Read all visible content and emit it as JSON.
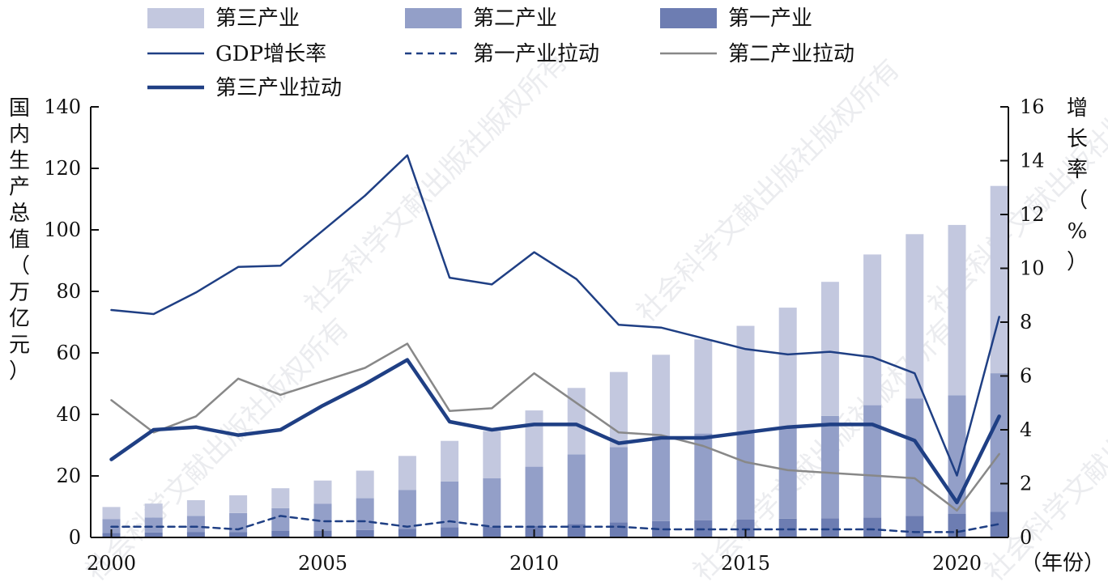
{
  "chart_data": {
    "type": "bar",
    "years": [
      2000,
      2001,
      2002,
      2003,
      2004,
      2005,
      2006,
      2007,
      2008,
      2009,
      2010,
      2011,
      2012,
      2013,
      2014,
      2015,
      2016,
      2017,
      2018,
      2019,
      2020,
      2021
    ],
    "stacked_bars": [
      {
        "name": "第一产业",
        "color": "#6d7db2",
        "values": [
          1.5,
          1.6,
          1.7,
          1.7,
          2.1,
          2.2,
          2.4,
          2.8,
          3.3,
          3.5,
          3.8,
          4.4,
          4.9,
          5.3,
          5.6,
          5.8,
          6.1,
          6.2,
          6.5,
          7.0,
          7.8,
          8.3
        ]
      },
      {
        "name": "第二产业",
        "color": "#939fc8",
        "values": [
          4.5,
          4.9,
          5.3,
          6.2,
          7.4,
          8.8,
          10.4,
          12.6,
          14.9,
          15.7,
          19.2,
          22.6,
          24.5,
          26.5,
          28.2,
          28.2,
          29.6,
          33.3,
          36.5,
          38.2,
          38.4,
          45.1
        ]
      },
      {
        "name": "第三产业",
        "color": "#c3c8df",
        "values": [
          3.9,
          4.5,
          5.1,
          5.8,
          6.5,
          7.5,
          8.9,
          11.1,
          13.2,
          15.4,
          18.3,
          21.6,
          24.4,
          27.6,
          30.6,
          34.8,
          39.0,
          43.6,
          49.0,
          53.4,
          55.4,
          60.9
        ]
      }
    ],
    "lines": [
      {
        "name": "GDP增长率",
        "color": "#1f3f84",
        "width": 2.5,
        "dash": "",
        "values": [
          8.45,
          8.3,
          9.1,
          10.05,
          10.1,
          11.4,
          12.7,
          14.2,
          9.65,
          9.4,
          10.6,
          9.6,
          7.9,
          7.8,
          7.4,
          7.0,
          6.8,
          6.9,
          6.7,
          6.1,
          2.3,
          8.2
        ]
      },
      {
        "name": "第一产业拉动",
        "color": "#1f3f84",
        "width": 2.5,
        "dash": "8,6",
        "values": [
          0.4,
          0.4,
          0.4,
          0.3,
          0.8,
          0.6,
          0.6,
          0.4,
          0.6,
          0.4,
          0.4,
          0.4,
          0.4,
          0.3,
          0.3,
          0.3,
          0.3,
          0.3,
          0.3,
          0.2,
          0.2,
          0.5
        ]
      },
      {
        "name": "第二产业拉动",
        "color": "#888888",
        "width": 2.5,
        "dash": "",
        "values": [
          5.1,
          3.9,
          4.5,
          5.9,
          5.3,
          5.8,
          6.3,
          7.2,
          4.7,
          4.8,
          6.1,
          5.0,
          3.9,
          3.8,
          3.4,
          2.8,
          2.5,
          2.4,
          2.3,
          2.2,
          1.0,
          3.1
        ]
      },
      {
        "name": "第三产业拉动",
        "color": "#1f3f84",
        "width": 4.5,
        "dash": "",
        "values": [
          2.9,
          4.0,
          4.1,
          3.8,
          4.0,
          4.9,
          5.7,
          6.6,
          4.3,
          4.0,
          4.2,
          4.2,
          3.5,
          3.7,
          3.7,
          3.9,
          4.1,
          4.2,
          4.2,
          3.6,
          1.3,
          4.5
        ]
      }
    ],
    "legend": [
      {
        "label": "第三产业",
        "kind": "box",
        "color": "#c3c8df"
      },
      {
        "label": "第二产业",
        "kind": "box",
        "color": "#939fc8"
      },
      {
        "label": "第一产业",
        "kind": "box",
        "color": "#6d7db2"
      },
      {
        "label": "GDP增长率",
        "kind": "line",
        "color": "#1f3f84",
        "width": 2.5,
        "dash": ""
      },
      {
        "label": "第一产业拉动",
        "kind": "line",
        "color": "#1f3f84",
        "width": 2.5,
        "dash": "8,6"
      },
      {
        "label": "第二产业拉动",
        "kind": "line",
        "color": "#888888",
        "width": 2.5,
        "dash": ""
      },
      {
        "label": "第三产业拉动",
        "kind": "line",
        "color": "#1f3f84",
        "width": 4.5,
        "dash": ""
      }
    ],
    "ylabel_left": "国内生产总值（万亿元）",
    "ylabel_right": "增长率（%）",
    "xlabel": "（年份）",
    "ylim_left": [
      0,
      140
    ],
    "yticks_left": [
      0,
      20,
      40,
      60,
      80,
      100,
      120,
      140
    ],
    "ylim_right": [
      0,
      16
    ],
    "yticks_right": [
      0,
      2,
      4,
      6,
      8,
      10,
      12,
      14,
      16
    ],
    "xticks": [
      2000,
      2005,
      2010,
      2015,
      2020
    ],
    "watermark": "社会科学文献出版社版权所有"
  }
}
